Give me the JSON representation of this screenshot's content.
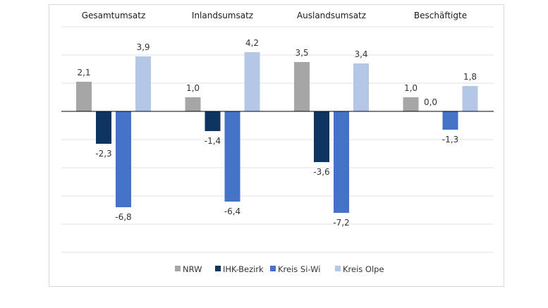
{
  "chart_data": {
    "type": "bar",
    "categories": [
      "Gesamtumsatz",
      "Inlandsumsatz",
      "Auslandsumsatz",
      "Beschäftigte"
    ],
    "series": [
      {
        "name": "NRW",
        "values": [
          2.1,
          1.0,
          3.5,
          1.0
        ],
        "labels": [
          "2,1",
          "1,0",
          "3,5",
          "1,0"
        ],
        "color": "#a6a6a6"
      },
      {
        "name": "IHK-Bezirk",
        "values": [
          -2.3,
          -1.4,
          -3.6,
          0.0
        ],
        "labels": [
          "-2,3",
          "-1,4",
          "-3,6",
          "0,0"
        ],
        "color": "#0d3461"
      },
      {
        "name": "Kreis Si-Wi",
        "values": [
          -6.8,
          -6.4,
          -7.2,
          -1.3
        ],
        "labels": [
          "-6,8",
          "-6,4",
          "-7,2",
          "-1,3"
        ],
        "color": "#4472c4"
      },
      {
        "name": "Kreis Olpe",
        "values": [
          3.9,
          4.2,
          3.4,
          1.8
        ],
        "labels": [
          "3,9",
          "4,2",
          "3,4",
          "1,8"
        ],
        "color": "#b4c7e7"
      }
    ],
    "ylim": [
      -10,
      6
    ],
    "grid": true,
    "legend_position": "bottom"
  }
}
